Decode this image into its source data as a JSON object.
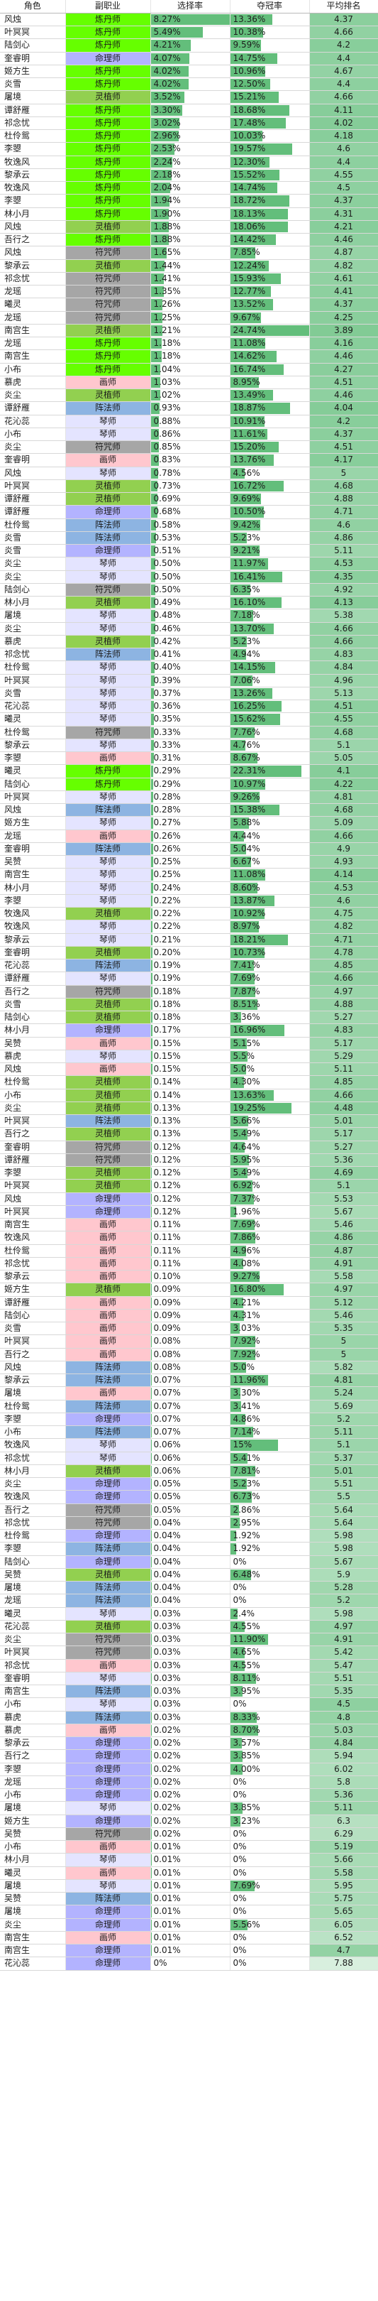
{
  "headers": [
    "角色",
    "副职业",
    "选择率",
    "夺冠率",
    "平均排名"
  ],
  "colors": {
    "炼丹师": "#66ff00",
    "命理师": "#b3b3ff",
    "灵植师": "#92d050",
    "符咒师": "#a6a6a6",
    "琴师": "#e4e4ff",
    "画师": "#ffc7ce",
    "阵法师": "#8db4e2",
    "bar": "#63be7b"
  },
  "rows": [
    {
      "role": "风烛",
      "sub": "炼丹师",
      "pick": "8.27%",
      "win": "13.36%",
      "rank": "4.37"
    },
    {
      "role": "叶冥冥",
      "sub": "炼丹师",
      "pick": "5.49%",
      "win": "10.38%",
      "rank": "4.66"
    },
    {
      "role": "陆剑心",
      "sub": "炼丹师",
      "pick": "4.21%",
      "win": "9.59%",
      "rank": "4.2"
    },
    {
      "role": "奎睿明",
      "sub": "命理师",
      "pick": "4.07%",
      "win": "14.75%",
      "rank": "4.4"
    },
    {
      "role": "姬方生",
      "sub": "炼丹师",
      "pick": "4.02%",
      "win": "10.96%",
      "rank": "4.67"
    },
    {
      "role": "炎雪",
      "sub": "炼丹师",
      "pick": "4.02%",
      "win": "12.50%",
      "rank": "4.4"
    },
    {
      "role": "屠境",
      "sub": "灵植师",
      "pick": "3.52%",
      "win": "15.21%",
      "rank": "4.66"
    },
    {
      "role": "谭舒雁",
      "sub": "炼丹师",
      "pick": "3.30%",
      "win": "18.68%",
      "rank": "4.11"
    },
    {
      "role": "祁念忧",
      "sub": "炼丹师",
      "pick": "3.02%",
      "win": "17.48%",
      "rank": "4.02"
    },
    {
      "role": "杜伶鸳",
      "sub": "炼丹师",
      "pick": "2.96%",
      "win": "10.03%",
      "rank": "4.18"
    },
    {
      "role": "李曌",
      "sub": "炼丹师",
      "pick": "2.53%",
      "win": "19.57%",
      "rank": "4.6"
    },
    {
      "role": "牧逸风",
      "sub": "炼丹师",
      "pick": "2.24%",
      "win": "12.30%",
      "rank": "4.4"
    },
    {
      "role": "黎承云",
      "sub": "炼丹师",
      "pick": "2.18%",
      "win": "15.52%",
      "rank": "4.55"
    },
    {
      "role": "牧逸风",
      "sub": "炼丹师",
      "pick": "2.04%",
      "win": "14.74%",
      "rank": "4.5"
    },
    {
      "role": "李曌",
      "sub": "炼丹师",
      "pick": "1.94%",
      "win": "18.72%",
      "rank": "4.37"
    },
    {
      "role": "林小月",
      "sub": "炼丹师",
      "pick": "1.90%",
      "win": "18.13%",
      "rank": "4.31"
    },
    {
      "role": "风烛",
      "sub": "灵植师",
      "pick": "1.88%",
      "win": "18.06%",
      "rank": "4.21"
    },
    {
      "role": "吾行之",
      "sub": "炼丹师",
      "pick": "1.88%",
      "win": "14.42%",
      "rank": "4.46"
    },
    {
      "role": "风烛",
      "sub": "符咒师",
      "pick": "1.65%",
      "win": "7.85%",
      "rank": "4.87"
    },
    {
      "role": "黎承云",
      "sub": "灵植师",
      "pick": "1.44%",
      "win": "12.24%",
      "rank": "4.82"
    },
    {
      "role": "祁念忧",
      "sub": "符咒师",
      "pick": "1.41%",
      "win": "15.93%",
      "rank": "4.61"
    },
    {
      "role": "龙瑶",
      "sub": "符咒师",
      "pick": "1.35%",
      "win": "12.77%",
      "rank": "4.41"
    },
    {
      "role": "曦灵",
      "sub": "符咒师",
      "pick": "1.26%",
      "win": "13.52%",
      "rank": "4.37"
    },
    {
      "role": "龙瑶",
      "sub": "符咒师",
      "pick": "1.25%",
      "win": "9.67%",
      "rank": "4.25"
    },
    {
      "role": "南宫生",
      "sub": "灵植师",
      "pick": "1.21%",
      "win": "24.74%",
      "rank": "3.89"
    },
    {
      "role": "龙瑶",
      "sub": "炼丹师",
      "pick": "1.18%",
      "win": "11.08%",
      "rank": "4.16"
    },
    {
      "role": "南宫生",
      "sub": "炼丹师",
      "pick": "1.18%",
      "win": "14.62%",
      "rank": "4.46"
    },
    {
      "role": "小布",
      "sub": "炼丹师",
      "pick": "1.04%",
      "win": "16.74%",
      "rank": "4.27"
    },
    {
      "role": "慕虎",
      "sub": "画师",
      "pick": "1.03%",
      "win": "8.95%",
      "rank": "4.51"
    },
    {
      "role": "炎尘",
      "sub": "灵植师",
      "pick": "1.02%",
      "win": "13.49%",
      "rank": "4.46"
    },
    {
      "role": "谭舒雁",
      "sub": "阵法师",
      "pick": "0.93%",
      "win": "18.87%",
      "rank": "4.04"
    },
    {
      "role": "花沁蕊",
      "sub": "琴师",
      "pick": "0.88%",
      "win": "10.91%",
      "rank": "4.2"
    },
    {
      "role": "小布",
      "sub": "琴师",
      "pick": "0.86%",
      "win": "11.61%",
      "rank": "4.37"
    },
    {
      "role": "炎尘",
      "sub": "符咒师",
      "pick": "0.85%",
      "win": "15.20%",
      "rank": "4.51"
    },
    {
      "role": "奎睿明",
      "sub": "画师",
      "pick": "0.83%",
      "win": "13.76%",
      "rank": "4.17"
    },
    {
      "role": "风烛",
      "sub": "琴师",
      "pick": "0.78%",
      "win": "4.56%",
      "rank": "5"
    },
    {
      "role": "叶冥冥",
      "sub": "灵植师",
      "pick": "0.73%",
      "win": "16.72%",
      "rank": "4.68"
    },
    {
      "role": "谭舒雁",
      "sub": "灵植师",
      "pick": "0.69%",
      "win": "9.69%",
      "rank": "4.88"
    },
    {
      "role": "谭舒雁",
      "sub": "命理师",
      "pick": "0.68%",
      "win": "10.50%",
      "rank": "4.71"
    },
    {
      "role": "杜伶鸳",
      "sub": "阵法师",
      "pick": "0.58%",
      "win": "9.42%",
      "rank": "4.6"
    },
    {
      "role": "炎雪",
      "sub": "阵法师",
      "pick": "0.53%",
      "win": "5.23%",
      "rank": "4.86"
    },
    {
      "role": "炎雪",
      "sub": "命理师",
      "pick": "0.51%",
      "win": "9.21%",
      "rank": "5.11"
    },
    {
      "role": "炎尘",
      "sub": "琴师",
      "pick": "0.50%",
      "win": "11.97%",
      "rank": "4.53"
    },
    {
      "role": "炎尘",
      "sub": "琴师",
      "pick": "0.50%",
      "win": "16.41%",
      "rank": "4.35"
    },
    {
      "role": "陆剑心",
      "sub": "符咒师",
      "pick": "0.50%",
      "win": "6.35%",
      "rank": "4.92"
    },
    {
      "role": "林小月",
      "sub": "灵植师",
      "pick": "0.49%",
      "win": "16.10%",
      "rank": "4.13"
    },
    {
      "role": "屠境",
      "sub": "琴师",
      "pick": "0.48%",
      "win": "7.18%",
      "rank": "5.38"
    },
    {
      "role": "炎尘",
      "sub": "琴师",
      "pick": "0.46%",
      "win": "13.70%",
      "rank": "4.66"
    },
    {
      "role": "慕虎",
      "sub": "灵植师",
      "pick": "0.42%",
      "win": "5.23%",
      "rank": "4.66"
    },
    {
      "role": "祁念忧",
      "sub": "阵法师",
      "pick": "0.41%",
      "win": "4.94%",
      "rank": "4.83"
    },
    {
      "role": "杜伶鸳",
      "sub": "琴师",
      "pick": "0.40%",
      "win": "14.15%",
      "rank": "4.84"
    },
    {
      "role": "叶冥冥",
      "sub": "琴师",
      "pick": "0.39%",
      "win": "7.06%",
      "rank": "4.96"
    },
    {
      "role": "炎雪",
      "sub": "琴师",
      "pick": "0.37%",
      "win": "13.26%",
      "rank": "5.13"
    },
    {
      "role": "花沁蕊",
      "sub": "琴师",
      "pick": "0.36%",
      "win": "16.25%",
      "rank": "4.51"
    },
    {
      "role": "曦灵",
      "sub": "琴师",
      "pick": "0.35%",
      "win": "15.62%",
      "rank": "4.55"
    },
    {
      "role": "杜伶鸳",
      "sub": "符咒师",
      "pick": "0.33%",
      "win": "7.76%",
      "rank": "4.68"
    },
    {
      "role": "黎承云",
      "sub": "琴师",
      "pick": "0.33%",
      "win": "4.76%",
      "rank": "5.1"
    },
    {
      "role": "李曌",
      "sub": "画师",
      "pick": "0.31%",
      "win": "8.67%",
      "rank": "5.05"
    },
    {
      "role": "曦灵",
      "sub": "炼丹师",
      "pick": "0.29%",
      "win": "22.31%",
      "rank": "4.1"
    },
    {
      "role": "陆剑心",
      "sub": "炼丹师",
      "pick": "0.29%",
      "win": "10.97%",
      "rank": "4.22"
    },
    {
      "role": "叶冥冥",
      "sub": "琴师",
      "pick": "0.28%",
      "win": "9.26%",
      "rank": "4.81"
    },
    {
      "role": "风烛",
      "sub": "阵法师",
      "pick": "0.28%",
      "win": "15.38%",
      "rank": "4.68"
    },
    {
      "role": "姬方生",
      "sub": "琴师",
      "pick": "0.27%",
      "win": "5.88%",
      "rank": "5.09"
    },
    {
      "role": "龙瑶",
      "sub": "画师",
      "pick": "0.26%",
      "win": "4.44%",
      "rank": "4.66"
    },
    {
      "role": "奎睿明",
      "sub": "阵法师",
      "pick": "0.26%",
      "win": "5.04%",
      "rank": "4.9"
    },
    {
      "role": "吴赞",
      "sub": "琴师",
      "pick": "0.25%",
      "win": "6.67%",
      "rank": "4.93"
    },
    {
      "role": "南宫生",
      "sub": "琴师",
      "pick": "0.25%",
      "win": "11.08%",
      "rank": "4.14"
    },
    {
      "role": "林小月",
      "sub": "琴师",
      "pick": "0.24%",
      "win": "8.60%",
      "rank": "4.53"
    },
    {
      "role": "李曌",
      "sub": "琴师",
      "pick": "0.22%",
      "win": "13.87%",
      "rank": "4.6"
    },
    {
      "role": "牧逸风",
      "sub": "灵植师",
      "pick": "0.22%",
      "win": "10.92%",
      "rank": "4.75"
    },
    {
      "role": "牧逸风",
      "sub": "琴师",
      "pick": "0.22%",
      "win": "8.97%",
      "rank": "4.82"
    },
    {
      "role": "黎承云",
      "sub": "琴师",
      "pick": "0.21%",
      "win": "18.21%",
      "rank": "4.71"
    },
    {
      "role": "奎睿明",
      "sub": "灵植师",
      "pick": "0.20%",
      "win": "10.73%",
      "rank": "4.78"
    },
    {
      "role": "花沁蕊",
      "sub": "阵法师",
      "pick": "0.19%",
      "win": "7.41%",
      "rank": "4.85"
    },
    {
      "role": "谭舒雁",
      "sub": "琴师",
      "pick": "0.19%",
      "win": "7.69%",
      "rank": "4.66"
    },
    {
      "role": "吾行之",
      "sub": "符咒师",
      "pick": "0.18%",
      "win": "7.87%",
      "rank": "4.97"
    },
    {
      "role": "炎雪",
      "sub": "灵植师",
      "pick": "0.18%",
      "win": "8.51%",
      "rank": "4.88"
    },
    {
      "role": "陆剑心",
      "sub": "灵植师",
      "pick": "0.18%",
      "win": "3.36%",
      "rank": "5.27"
    },
    {
      "role": "林小月",
      "sub": "命理师",
      "pick": "0.17%",
      "win": "16.96%",
      "rank": "4.83"
    },
    {
      "role": "吴赞",
      "sub": "画师",
      "pick": "0.15%",
      "win": "5.15%",
      "rank": "5.17"
    },
    {
      "role": "慕虎",
      "sub": "琴师",
      "pick": "0.15%",
      "win": "5.5%",
      "rank": "5.29"
    },
    {
      "role": "风烛",
      "sub": "画师",
      "pick": "0.15%",
      "win": "5.0%",
      "rank": "5.11"
    },
    {
      "role": "杜伶鸳",
      "sub": "灵植师",
      "pick": "0.14%",
      "win": "4.30%",
      "rank": "4.85"
    },
    {
      "role": "小布",
      "sub": "灵植师",
      "pick": "0.14%",
      "win": "13.63%",
      "rank": "4.66"
    },
    {
      "role": "炎尘",
      "sub": "灵植师",
      "pick": "0.13%",
      "win": "19.25%",
      "rank": "4.48"
    },
    {
      "role": "叶冥冥",
      "sub": "阵法师",
      "pick": "0.13%",
      "win": "5.66%",
      "rank": "5.01"
    },
    {
      "role": "吾行之",
      "sub": "灵植师",
      "pick": "0.13%",
      "win": "5.49%",
      "rank": "5.17"
    },
    {
      "role": "奎睿明",
      "sub": "符咒师",
      "pick": "0.12%",
      "win": "4.64%",
      "rank": "5.27"
    },
    {
      "role": "谭舒雁",
      "sub": "符咒师",
      "pick": "0.12%",
      "win": "5.95%",
      "rank": "5.36"
    },
    {
      "role": "李曌",
      "sub": "灵植师",
      "pick": "0.12%",
      "win": "5.49%",
      "rank": "4.69"
    },
    {
      "role": "叶冥冥",
      "sub": "灵植师",
      "pick": "0.12%",
      "win": "6.92%",
      "rank": "5.1"
    },
    {
      "role": "风烛",
      "sub": "命理师",
      "pick": "0.12%",
      "win": "7.37%",
      "rank": "5.53"
    },
    {
      "role": "叶冥冥",
      "sub": "命理师",
      "pick": "0.12%",
      "win": "1.96%",
      "rank": "5.67"
    },
    {
      "role": "南宫生",
      "sub": "画师",
      "pick": "0.11%",
      "win": "7.69%",
      "rank": "5.46"
    },
    {
      "role": "牧逸风",
      "sub": "画师",
      "pick": "0.11%",
      "win": "7.86%",
      "rank": "4.86"
    },
    {
      "role": "杜伶鸳",
      "sub": "画师",
      "pick": "0.11%",
      "win": "4.96%",
      "rank": "4.87"
    },
    {
      "role": "祁念忧",
      "sub": "画师",
      "pick": "0.11%",
      "win": "4.08%",
      "rank": "4.91"
    },
    {
      "role": "黎承云",
      "sub": "画师",
      "pick": "0.10%",
      "win": "9.27%",
      "rank": "5.58"
    },
    {
      "role": "姬方生",
      "sub": "灵植师",
      "pick": "0.09%",
      "win": "16.80%",
      "rank": "4.97"
    },
    {
      "role": "谭舒雁",
      "sub": "画师",
      "pick": "0.09%",
      "win": "4.21%",
      "rank": "5.12"
    },
    {
      "role": "陆剑心",
      "sub": "画师",
      "pick": "0.09%",
      "win": "4.31%",
      "rank": "5.46"
    },
    {
      "role": "炎雪",
      "sub": "画师",
      "pick": "0.09%",
      "win": "3.03%",
      "rank": "5.35"
    },
    {
      "role": "叶冥冥",
      "sub": "画师",
      "pick": "0.08%",
      "win": "7.92%",
      "rank": "5"
    },
    {
      "role": "吾行之",
      "sub": "画师",
      "pick": "0.08%",
      "win": "7.92%",
      "rank": "5"
    },
    {
      "role": "风烛",
      "sub": "阵法师",
      "pick": "0.08%",
      "win": "5.0%",
      "rank": "5.82"
    },
    {
      "role": "黎承云",
      "sub": "阵法师",
      "pick": "0.07%",
      "win": "11.96%",
      "rank": "4.81"
    },
    {
      "role": "屠境",
      "sub": "画师",
      "pick": "0.07%",
      "win": "3.30%",
      "rank": "5.24"
    },
    {
      "role": "杜伶鸳",
      "sub": "阵法师",
      "pick": "0.07%",
      "win": "3.41%",
      "rank": "5.69"
    },
    {
      "role": "李曌",
      "sub": "命理师",
      "pick": "0.07%",
      "win": "4.86%",
      "rank": "5.2"
    },
    {
      "role": "小布",
      "sub": "阵法师",
      "pick": "0.07%",
      "win": "7.14%",
      "rank": "5.11"
    },
    {
      "role": "牧逸风",
      "sub": "琴师",
      "pick": "0.06%",
      "win": "15%",
      "rank": "5.1"
    },
    {
      "role": "祁念忧",
      "sub": "琴师",
      "pick": "0.06%",
      "win": "5.41%",
      "rank": "5.37"
    },
    {
      "role": "林小月",
      "sub": "灵植师",
      "pick": "0.06%",
      "win": "7.81%",
      "rank": "5.01"
    },
    {
      "role": "炎尘",
      "sub": "命理师",
      "pick": "0.05%",
      "win": "5.23%",
      "rank": "5.51"
    },
    {
      "role": "牧逸风",
      "sub": "命理师",
      "pick": "0.05%",
      "win": "6.73%",
      "rank": "5.5"
    },
    {
      "role": "吾行之",
      "sub": "符咒师",
      "pick": "0.05%",
      "win": "2.86%",
      "rank": "5.64"
    },
    {
      "role": "祁念忧",
      "sub": "符咒师",
      "pick": "0.04%",
      "win": "2.95%",
      "rank": "5.64"
    },
    {
      "role": "杜伶鸳",
      "sub": "命理师",
      "pick": "0.04%",
      "win": "1.92%",
      "rank": "5.98"
    },
    {
      "role": "李曌",
      "sub": "阵法师",
      "pick": "0.04%",
      "win": "1.92%",
      "rank": "5.98"
    },
    {
      "role": "陆剑心",
      "sub": "命理师",
      "pick": "0.04%",
      "win": "0%",
      "rank": "5.67"
    },
    {
      "role": "吴赞",
      "sub": "灵植师",
      "pick": "0.04%",
      "win": "6.48%",
      "rank": "5.9"
    },
    {
      "role": "屠境",
      "sub": "阵法师",
      "pick": "0.04%",
      "win": "0%",
      "rank": "5.28"
    },
    {
      "role": "龙瑶",
      "sub": "阵法师",
      "pick": "0.04%",
      "win": "0%",
      "rank": "5.2"
    },
    {
      "role": "曦灵",
      "sub": "琴师",
      "pick": "0.03%",
      "win": "2.4%",
      "rank": "5.98"
    },
    {
      "role": "花沁蕊",
      "sub": "灵植师",
      "pick": "0.03%",
      "win": "4.55%",
      "rank": "4.97"
    },
    {
      "role": "炎尘",
      "sub": "符咒师",
      "pick": "0.03%",
      "win": "11.90%",
      "rank": "4.91"
    },
    {
      "role": "叶冥冥",
      "sub": "符咒师",
      "pick": "0.03%",
      "win": "4.65%",
      "rank": "5.42"
    },
    {
      "role": "祁念忧",
      "sub": "画师",
      "pick": "0.03%",
      "win": "4.55%",
      "rank": "5.47"
    },
    {
      "role": "奎睿明",
      "sub": "琴师",
      "pick": "0.03%",
      "win": "8.11%",
      "rank": "5.51"
    },
    {
      "role": "南宫生",
      "sub": "阵法师",
      "pick": "0.03%",
      "win": "3.95%",
      "rank": "5.35"
    },
    {
      "role": "小布",
      "sub": "琴师",
      "pick": "0.03%",
      "win": "0%",
      "rank": "4.5"
    },
    {
      "role": "慕虎",
      "sub": "阵法师",
      "pick": "0.03%",
      "win": "8.33%",
      "rank": "4.8"
    },
    {
      "role": "慕虎",
      "sub": "画师",
      "pick": "0.02%",
      "win": "8.70%",
      "rank": "5.03"
    },
    {
      "role": "黎承云",
      "sub": "命理师",
      "pick": "0.02%",
      "win": "3.57%",
      "rank": "4.84"
    },
    {
      "role": "吾行之",
      "sub": "命理师",
      "pick": "0.02%",
      "win": "3.85%",
      "rank": "5.94"
    },
    {
      "role": "李曌",
      "sub": "命理师",
      "pick": "0.02%",
      "win": "4.00%",
      "rank": "6.02"
    },
    {
      "role": "龙瑶",
      "sub": "命理师",
      "pick": "0.02%",
      "win": "0%",
      "rank": "5.8"
    },
    {
      "role": "小布",
      "sub": "命理师",
      "pick": "0.02%",
      "win": "0%",
      "rank": "5.36"
    },
    {
      "role": "屠境",
      "sub": "琴师",
      "pick": "0.02%",
      "win": "3.85%",
      "rank": "5.11"
    },
    {
      "role": "姬方生",
      "sub": "命理师",
      "pick": "0.02%",
      "win": "3.23%",
      "rank": "6.3"
    },
    {
      "role": "吴赞",
      "sub": "符咒师",
      "pick": "0.02%",
      "win": "0%",
      "rank": "6.29"
    },
    {
      "role": "小布",
      "sub": "画师",
      "pick": "0.01%",
      "win": "0%",
      "rank": "5.19"
    },
    {
      "role": "林小月",
      "sub": "琴师",
      "pick": "0.01%",
      "win": "0%",
      "rank": "5.66"
    },
    {
      "role": "曦灵",
      "sub": "画师",
      "pick": "0.01%",
      "win": "0%",
      "rank": "5.58"
    },
    {
      "role": "屠境",
      "sub": "琴师",
      "pick": "0.01%",
      "win": "7.69%",
      "rank": "5.95"
    },
    {
      "role": "吴赞",
      "sub": "阵法师",
      "pick": "0.01%",
      "win": "0%",
      "rank": "5.75"
    },
    {
      "role": "屠境",
      "sub": "命理师",
      "pick": "0.01%",
      "win": "0%",
      "rank": "5.65"
    },
    {
      "role": "炎尘",
      "sub": "命理师",
      "pick": "0.01%",
      "win": "5.56%",
      "rank": "6.05"
    },
    {
      "role": "南宫生",
      "sub": "画师",
      "pick": "0.01%",
      "win": "0%",
      "rank": "6.52"
    },
    {
      "role": "南宫生",
      "sub": "命理师",
      "pick": "0.01%",
      "win": "0%",
      "rank": "4.7"
    },
    {
      "role": "花沁蕊",
      "sub": "命理师",
      "pick": "0%",
      "win": "0%",
      "rank": "7.88"
    }
  ]
}
